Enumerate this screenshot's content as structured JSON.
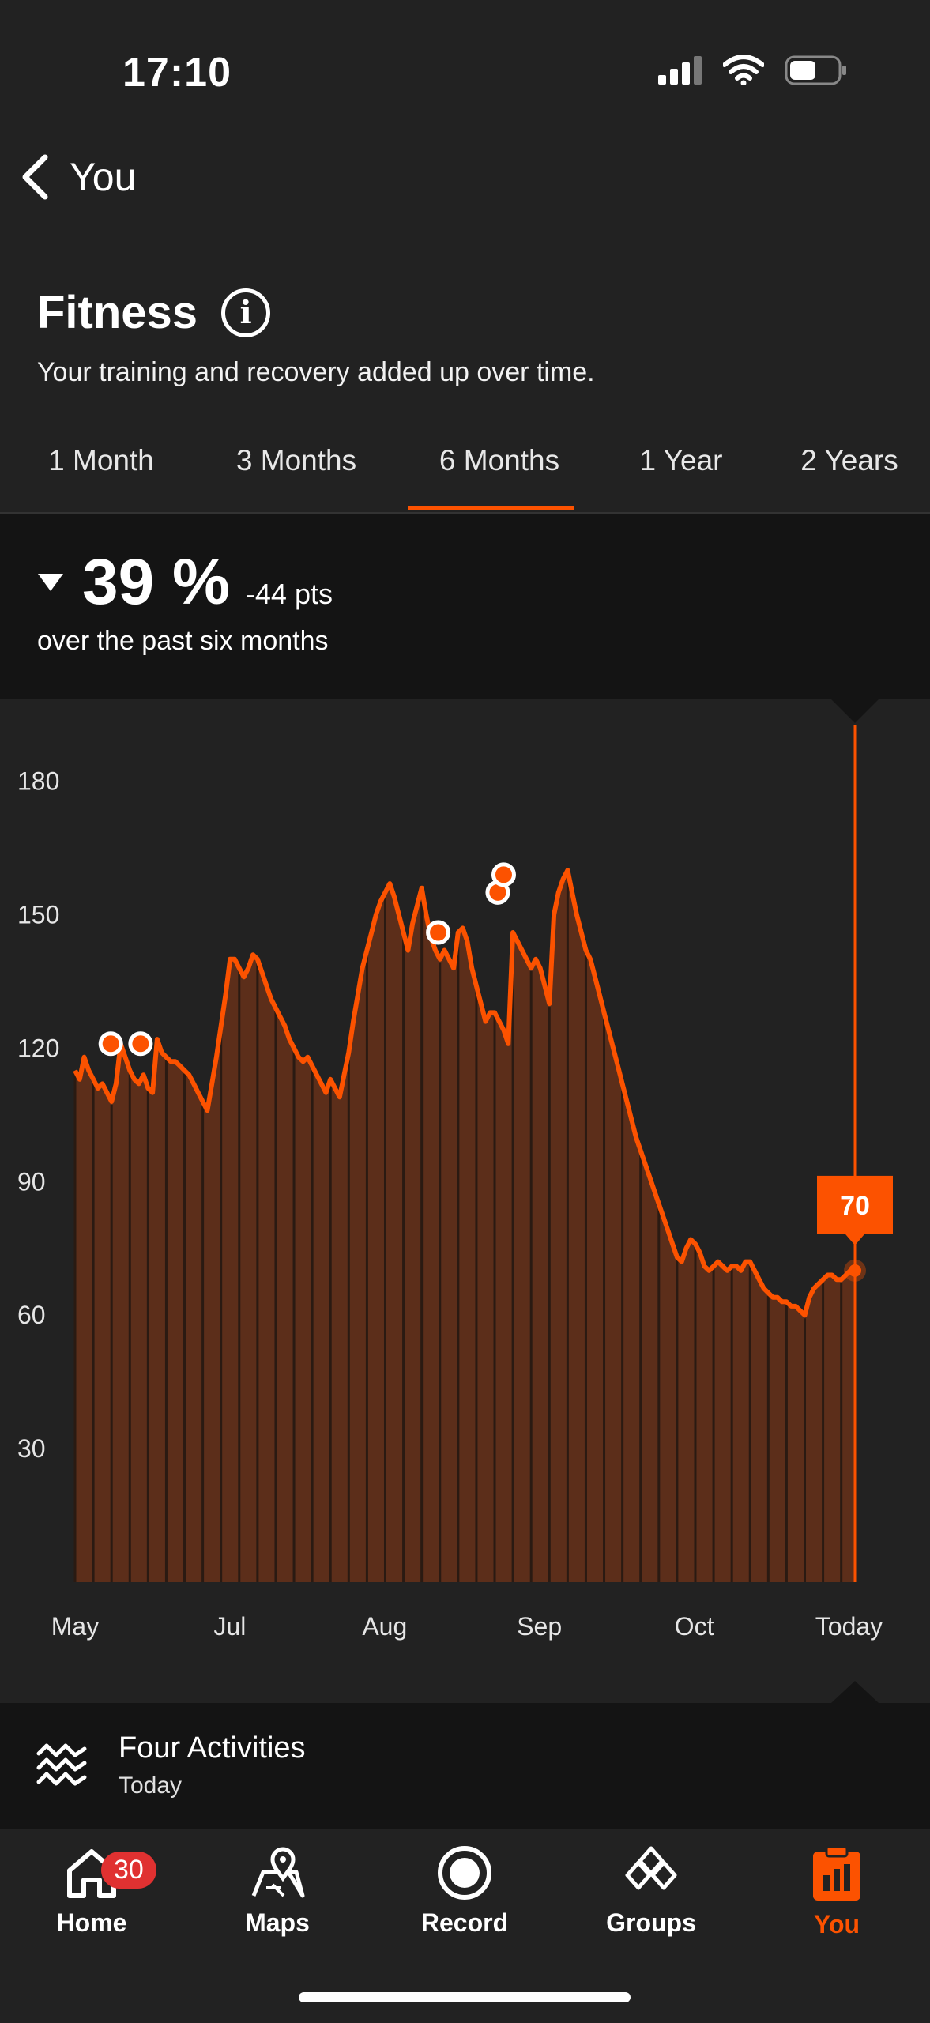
{
  "status_bar": {
    "time": "17:10"
  },
  "header": {
    "back_label": "You"
  },
  "page": {
    "title": "Fitness",
    "subtitle": "Your training and recovery added up over time."
  },
  "tabs": [
    {
      "label": "1 Month",
      "selected": false
    },
    {
      "label": "3 Months",
      "selected": false
    },
    {
      "label": "6 Months",
      "selected": true
    },
    {
      "label": "1 Year",
      "selected": false
    },
    {
      "label": "2 Years",
      "selected": false
    }
  ],
  "summary": {
    "trend": "down",
    "percent": "39 %",
    "points": "-44 pts",
    "caption": "over the past six months"
  },
  "colors": {
    "accent": "#fc5200",
    "area_fill": "#5c2e1a",
    "background": "#222222",
    "panel": "#141414",
    "badge": "#e03131"
  },
  "chart_data": {
    "type": "area",
    "y_ticks": [
      "180",
      "150",
      "120",
      "90",
      "60",
      "30"
    ],
    "ylim": [
      0,
      180
    ],
    "x_tick_labels": [
      "May",
      "Jul",
      "Aug",
      "Sep",
      "Oct",
      "Today"
    ],
    "x_tick_positions": [
      0,
      26,
      52,
      78,
      104,
      130
    ],
    "xlim": [
      0,
      131
    ],
    "tooltip": {
      "label": "70",
      "x": 131,
      "value": 70
    },
    "highlighted_points": [
      {
        "x": 6,
        "value": 121
      },
      {
        "x": 11,
        "value": 121
      },
      {
        "x": 61,
        "value": 146
      },
      {
        "x": 71,
        "value": 155
      },
      {
        "x": 72,
        "value": 159
      }
    ],
    "series": [
      {
        "values": [
          115,
          113,
          118,
          115,
          113,
          111,
          112,
          110,
          108,
          112,
          121,
          118,
          115,
          113,
          112,
          114,
          111,
          110,
          122,
          119,
          118,
          117,
          117,
          116,
          115,
          114,
          112,
          110,
          108,
          106,
          112,
          118,
          125,
          132,
          140,
          140,
          138,
          136,
          138,
          141,
          140,
          137,
          134,
          131,
          129,
          127,
          125,
          122,
          120,
          118,
          117,
          118,
          116,
          114,
          112,
          110,
          113,
          111,
          109,
          114,
          119,
          126,
          132,
          138,
          142,
          146,
          150,
          153,
          155,
          157,
          154,
          150,
          146,
          142,
          148,
          152,
          156,
          150,
          145,
          142,
          140,
          142,
          140,
          138,
          146,
          147,
          144,
          138,
          134,
          130,
          126,
          128,
          128,
          126,
          124,
          121,
          146,
          144,
          142,
          140,
          138,
          140,
          138,
          134,
          130,
          150,
          155,
          158,
          160,
          155,
          150,
          146,
          142,
          140,
          136,
          132,
          128,
          124,
          120,
          116,
          112,
          108,
          104,
          100,
          97,
          94,
          91,
          88,
          85,
          82,
          79,
          76,
          73,
          72,
          75,
          77,
          76,
          74,
          71,
          70,
          71,
          72,
          71,
          70,
          71,
          71,
          70,
          72,
          72,
          70,
          68,
          66,
          65,
          64,
          64,
          63,
          63,
          62,
          62,
          61,
          60,
          64,
          66,
          67,
          68,
          69,
          69,
          68,
          68,
          69,
          70,
          70
        ]
      }
    ]
  },
  "activity": {
    "title": "Four Activities",
    "subtitle": "Today"
  },
  "nav": {
    "items": [
      {
        "label": "Home",
        "badge": "30",
        "active": false
      },
      {
        "label": "Maps",
        "active": false
      },
      {
        "label": "Record",
        "active": false
      },
      {
        "label": "Groups",
        "active": false
      },
      {
        "label": "You",
        "active": true
      }
    ]
  }
}
